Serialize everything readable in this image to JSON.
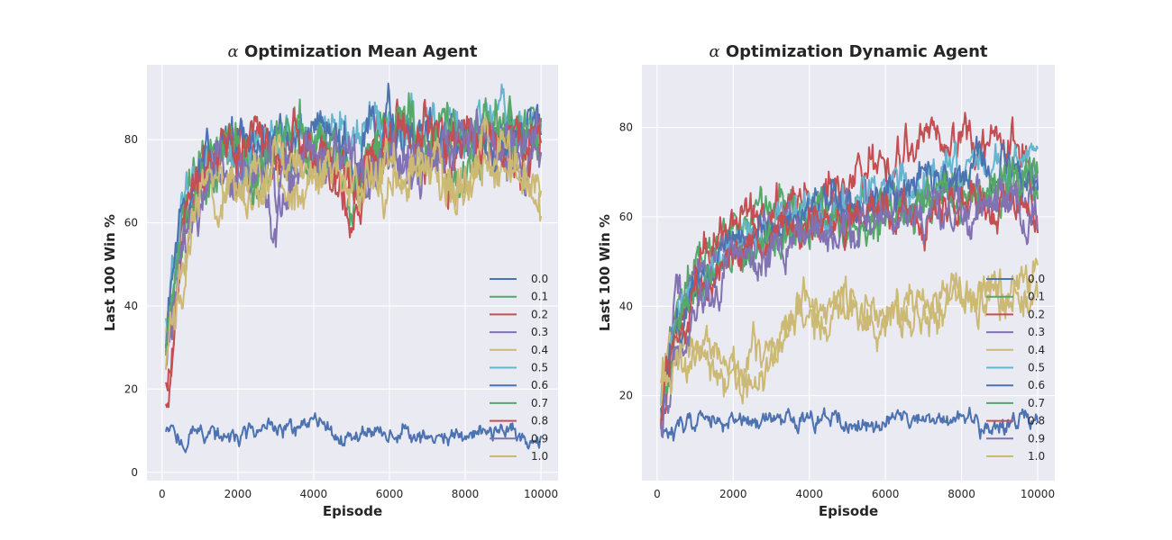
{
  "figure": {
    "background": "#ffffff",
    "axes_face": "#eaeaf2",
    "grid_color": "#ffffff",
    "palette": [
      "#4c72b0",
      "#55a868",
      "#c44e52",
      "#8172b2",
      "#ccb974",
      "#64b5cd"
    ]
  },
  "chart_data": [
    {
      "type": "line",
      "title_prefix": "α",
      "title": "Optimization Mean Agent",
      "xlabel": "Episode",
      "ylabel": "Last 100 Win %",
      "xlim": [
        -400,
        10450
      ],
      "ylim": [
        -2,
        98
      ],
      "xticks": [
        0,
        2000,
        4000,
        6000,
        8000,
        10000
      ],
      "yticks": [
        0,
        20,
        40,
        60,
        80
      ],
      "grid": true,
      "legend": "lower-right",
      "x": [
        100,
        500,
        1000,
        1500,
        2000,
        2500,
        3000,
        3500,
        4000,
        4500,
        5000,
        5500,
        6000,
        6500,
        7000,
        7500,
        8000,
        8500,
        9000,
        9500,
        10000
      ],
      "series": [
        {
          "name": "0.0",
          "color": "#4c72b0",
          "values": [
            10,
            8,
            10,
            9,
            8,
            10,
            11,
            9,
            12,
            9,
            8,
            11,
            9,
            10,
            9,
            8,
            10,
            9,
            10,
            9,
            8
          ]
        },
        {
          "name": "0.1",
          "color": "#55a868",
          "values": [
            28,
            62,
            74,
            78,
            80,
            70,
            76,
            80,
            72,
            78,
            62,
            76,
            84,
            82,
            76,
            80,
            70,
            82,
            80,
            84,
            78
          ]
        },
        {
          "name": "0.2",
          "color": "#c44e52",
          "values": [
            14,
            58,
            72,
            76,
            80,
            80,
            74,
            78,
            80,
            70,
            58,
            74,
            80,
            84,
            78,
            70,
            82,
            80,
            78,
            76,
            74
          ]
        },
        {
          "name": "0.3",
          "color": "#8172b2",
          "values": [
            30,
            55,
            70,
            72,
            68,
            72,
            60,
            72,
            74,
            76,
            72,
            70,
            78,
            70,
            80,
            74,
            80,
            82,
            78,
            70,
            80
          ]
        },
        {
          "name": "0.4",
          "color": "#ccb974",
          "values": [
            32,
            48,
            72,
            62,
            70,
            66,
            74,
            68,
            70,
            72,
            64,
            70,
            68,
            72,
            74,
            70,
            66,
            74,
            78,
            72,
            62
          ]
        },
        {
          "name": "0.5",
          "color": "#64b5cd",
          "values": [
            34,
            62,
            74,
            78,
            76,
            80,
            78,
            82,
            80,
            82,
            80,
            84,
            82,
            84,
            82,
            84,
            80,
            82,
            84,
            82,
            80
          ]
        },
        {
          "name": "0.6",
          "color": "#4c72b0",
          "values": [
            30,
            58,
            72,
            76,
            78,
            76,
            80,
            78,
            82,
            80,
            76,
            80,
            84,
            80,
            82,
            78,
            84,
            80,
            82,
            84,
            82
          ]
        },
        {
          "name": "0.7",
          "color": "#55a868",
          "values": [
            26,
            56,
            70,
            74,
            80,
            72,
            78,
            82,
            78,
            80,
            70,
            78,
            80,
            84,
            80,
            82,
            76,
            84,
            82,
            80,
            82
          ]
        },
        {
          "name": "0.8",
          "color": "#c44e52",
          "values": [
            18,
            54,
            74,
            78,
            76,
            82,
            76,
            80,
            78,
            74,
            72,
            78,
            82,
            78,
            84,
            76,
            80,
            82,
            80,
            78,
            80
          ]
        },
        {
          "name": "0.9",
          "color": "#8172b2",
          "values": [
            24,
            52,
            68,
            74,
            72,
            74,
            70,
            76,
            78,
            74,
            76,
            72,
            78,
            74,
            80,
            76,
            80,
            82,
            80,
            76,
            82
          ]
        },
        {
          "name": "1.0",
          "color": "#ccb974",
          "values": [
            22,
            50,
            70,
            66,
            72,
            70,
            76,
            72,
            74,
            74,
            68,
            72,
            76,
            74,
            76,
            72,
            68,
            76,
            78,
            74,
            66
          ]
        }
      ]
    },
    {
      "type": "line",
      "title_prefix": "α",
      "title": "Optimization Dynamic Agent",
      "xlabel": "Episode",
      "ylabel": "Last 100 Win %",
      "xlim": [
        -400,
        10450
      ],
      "ylim": [
        1,
        94
      ],
      "xticks": [
        0,
        2000,
        4000,
        6000,
        8000,
        10000
      ],
      "yticks": [
        20,
        40,
        60,
        80
      ],
      "grid": true,
      "legend": "lower-right",
      "x": [
        100,
        500,
        1000,
        1500,
        2000,
        2500,
        3000,
        3500,
        4000,
        4500,
        5000,
        5500,
        6000,
        6500,
        7000,
        7500,
        8000,
        8500,
        9000,
        9500,
        10000
      ],
      "series": [
        {
          "name": "0.0",
          "color": "#4c72b0",
          "values": [
            14,
            12,
            15,
            14,
            13,
            14,
            15,
            16,
            13,
            15,
            14,
            13,
            15,
            14,
            13,
            14,
            15,
            13,
            14,
            15,
            14
          ]
        },
        {
          "name": "0.1",
          "color": "#55a868",
          "values": [
            18,
            40,
            50,
            54,
            56,
            58,
            60,
            62,
            60,
            62,
            58,
            60,
            62,
            64,
            62,
            64,
            66,
            64,
            66,
            68,
            66
          ]
        },
        {
          "name": "0.2",
          "color": "#c44e52",
          "values": [
            16,
            36,
            50,
            56,
            58,
            60,
            62,
            62,
            64,
            66,
            68,
            70,
            72,
            74,
            74,
            76,
            76,
            74,
            78,
            80,
            62
          ]
        },
        {
          "name": "0.3",
          "color": "#8172b2",
          "values": [
            20,
            38,
            46,
            50,
            54,
            56,
            58,
            60,
            58,
            60,
            62,
            64,
            62,
            64,
            62,
            64,
            66,
            64,
            66,
            64,
            66
          ]
        },
        {
          "name": "0.4",
          "color": "#ccb974",
          "values": [
            26,
            30,
            28,
            25,
            24,
            22,
            26,
            34,
            38,
            36,
            40,
            38,
            36,
            40,
            38,
            40,
            42,
            40,
            42,
            44,
            46
          ]
        },
        {
          "name": "0.5",
          "color": "#64b5cd",
          "values": [
            20,
            40,
            46,
            50,
            54,
            56,
            58,
            60,
            62,
            62,
            64,
            66,
            66,
            68,
            68,
            70,
            70,
            70,
            72,
            72,
            74
          ]
        },
        {
          "name": "0.6",
          "color": "#4c72b0",
          "values": [
            18,
            36,
            44,
            48,
            52,
            54,
            56,
            58,
            60,
            62,
            62,
            64,
            66,
            66,
            68,
            68,
            68,
            70,
            70,
            72,
            72
          ]
        },
        {
          "name": "0.7",
          "color": "#55a868",
          "values": [
            16,
            34,
            42,
            46,
            50,
            52,
            54,
            56,
            58,
            58,
            60,
            60,
            62,
            62,
            64,
            64,
            66,
            66,
            68,
            68,
            70
          ]
        },
        {
          "name": "0.8",
          "color": "#c44e52",
          "values": [
            14,
            32,
            42,
            46,
            50,
            54,
            56,
            58,
            58,
            60,
            60,
            62,
            62,
            62,
            60,
            62,
            64,
            64,
            62,
            64,
            64
          ]
        },
        {
          "name": "0.9",
          "color": "#8172b2",
          "values": [
            14,
            30,
            40,
            44,
            48,
            50,
            52,
            54,
            56,
            56,
            58,
            58,
            58,
            60,
            58,
            60,
            60,
            62,
            60,
            62,
            62
          ]
        },
        {
          "name": "1.0",
          "color": "#ccb974",
          "values": [
            20,
            28,
            32,
            30,
            28,
            30,
            34,
            38,
            40,
            38,
            42,
            40,
            40,
            38,
            40,
            42,
            42,
            44,
            44,
            46,
            48
          ]
        }
      ]
    }
  ]
}
